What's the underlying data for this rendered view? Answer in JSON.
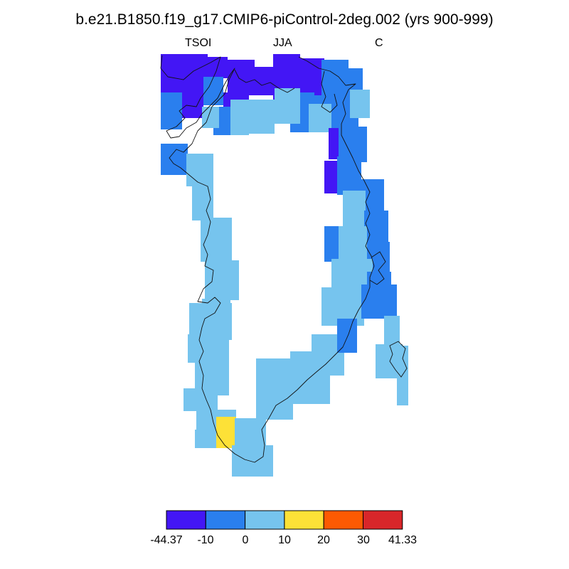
{
  "title": "b.e21.B1850.f19_g17.CMIP6-piControl-2deg.002 (yrs 900-999)",
  "subtitle_left": "TSOI",
  "subtitle_center": "JJA",
  "subtitle_right": "C",
  "colorbar": {
    "colors": [
      "#4316f5",
      "#2a7fee",
      "#76c4ee",
      "#fde137",
      "#fd5a02",
      "#d8262a"
    ],
    "labels": [
      "-44.37",
      "-10",
      "0",
      "10",
      "20",
      "30",
      "41.33"
    ]
  },
  "map": {
    "region": "Greenland",
    "field": "TSOI",
    "season": "JJA",
    "units": "C",
    "cell_category_counts": {
      "-44.37 to -10": 9,
      "-10 to 0": 20,
      "0 to 10": 38,
      "10 to 20": 1
    }
  }
}
